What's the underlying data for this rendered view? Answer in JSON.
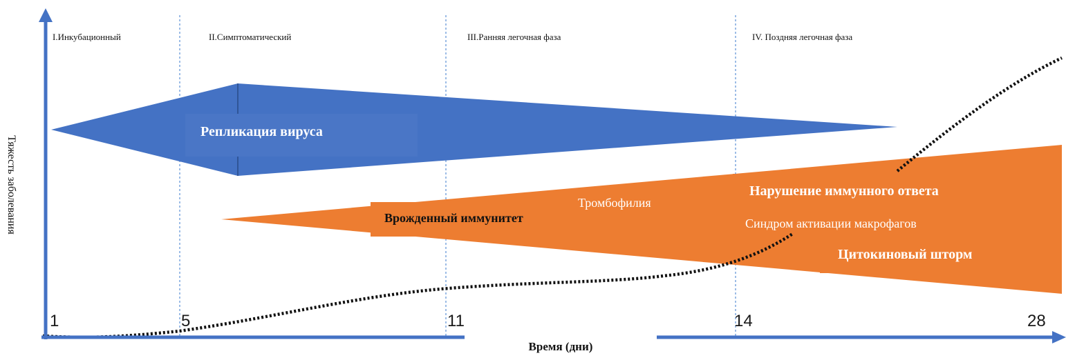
{
  "phases": [
    {
      "label": "I.Инкубационный"
    },
    {
      "label": "II.Симптоматический"
    },
    {
      "label": "III.Ранняя легочная фаза"
    },
    {
      "label": "IV. Поздняя легочная фаза"
    }
  ],
  "days": [
    "1",
    "5",
    "11",
    "14",
    "28"
  ],
  "axis": {
    "y_label": "Тяжесть заболевания",
    "x_label": "Время (дни)"
  },
  "bands": {
    "virus": {
      "label": "Репликация вируса",
      "color": "#4472c4"
    },
    "immune": {
      "color": "#ed7d31"
    }
  },
  "labels": {
    "innate": "Врожденный иммунитет",
    "thrombophilia": "Тромбофилия",
    "immune_disorder": "Нарушение иммунного ответа",
    "macrophage": "Синдром активации макрофагов",
    "cytokine": "Цитокиновый шторм"
  },
  "colors": {
    "axis": "#4472c4",
    "divider": "#5b8fd6",
    "curve": "#111111"
  }
}
